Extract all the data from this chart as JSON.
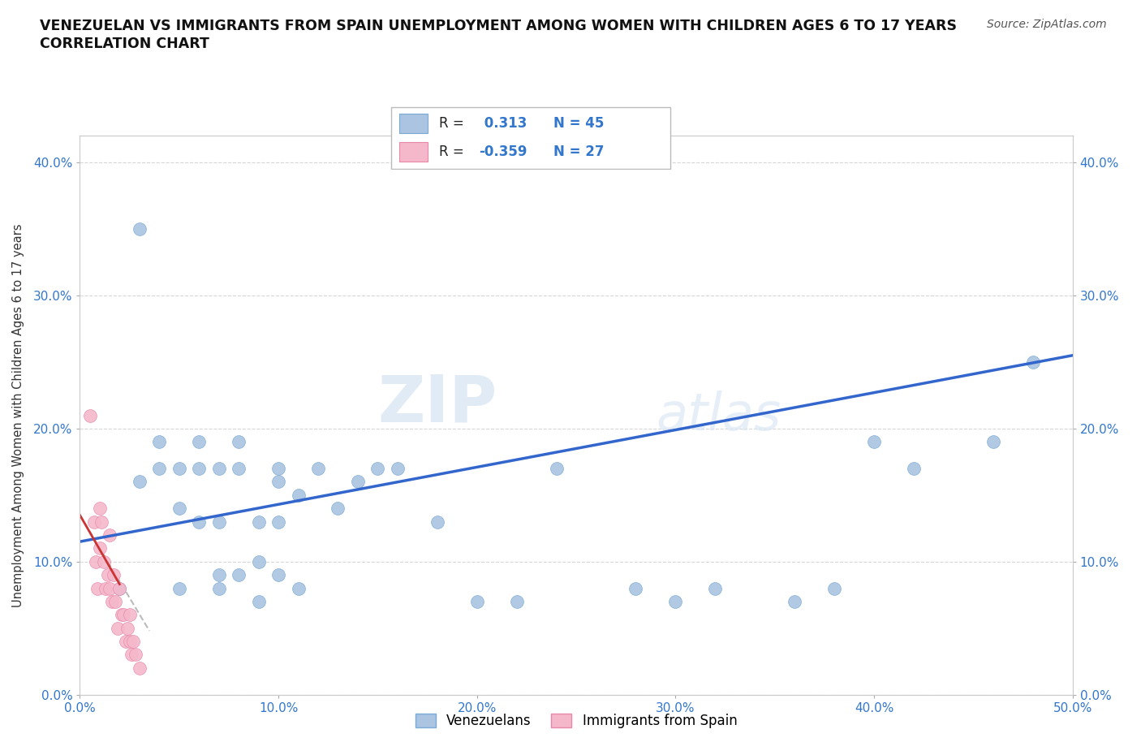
{
  "title_line1": "VENEZUELAN VS IMMIGRANTS FROM SPAIN UNEMPLOYMENT AMONG WOMEN WITH CHILDREN AGES 6 TO 17 YEARS",
  "title_line2": "CORRELATION CHART",
  "source": "Source: ZipAtlas.com",
  "ylabel": "Unemployment Among Women with Children Ages 6 to 17 years",
  "xlim": [
    0.0,
    0.5
  ],
  "ylim": [
    0.0,
    0.42
  ],
  "xticks": [
    0.0,
    0.1,
    0.2,
    0.3,
    0.4,
    0.5
  ],
  "yticks": [
    0.0,
    0.1,
    0.2,
    0.3,
    0.4
  ],
  "xtick_labels": [
    "0.0%",
    "10.0%",
    "20.0%",
    "30.0%",
    "40.0%",
    "50.0%"
  ],
  "ytick_labels": [
    "0.0%",
    "10.0%",
    "20.0%",
    "30.0%",
    "40.0%"
  ],
  "r_venezuelan": 0.313,
  "n_venezuelan": 45,
  "r_spain": -0.359,
  "n_spain": 27,
  "watermark_zip": "ZIP",
  "watermark_atlas": "atlas",
  "venezuelan_color": "#aac4e2",
  "venezuelan_edge": "#7aaad4",
  "spain_color": "#f5b8cb",
  "spain_edge": "#e888a8",
  "line_blue_color": "#3366cc",
  "line_red_color": "#cc3333",
  "line_dash_color": "#bbbbbb",
  "venezuelan_x": [
    0.02,
    0.03,
    0.03,
    0.04,
    0.04,
    0.05,
    0.05,
    0.05,
    0.06,
    0.06,
    0.06,
    0.07,
    0.07,
    0.07,
    0.07,
    0.08,
    0.08,
    0.08,
    0.09,
    0.09,
    0.09,
    0.1,
    0.1,
    0.1,
    0.1,
    0.11,
    0.11,
    0.12,
    0.13,
    0.14,
    0.15,
    0.16,
    0.18,
    0.2,
    0.22,
    0.24,
    0.28,
    0.3,
    0.32,
    0.36,
    0.38,
    0.4,
    0.42,
    0.46,
    0.48
  ],
  "venezuelan_y": [
    0.08,
    0.35,
    0.16,
    0.19,
    0.17,
    0.14,
    0.17,
    0.08,
    0.19,
    0.17,
    0.13,
    0.13,
    0.17,
    0.08,
    0.09,
    0.17,
    0.09,
    0.19,
    0.13,
    0.07,
    0.1,
    0.16,
    0.13,
    0.17,
    0.09,
    0.08,
    0.15,
    0.17,
    0.14,
    0.16,
    0.17,
    0.17,
    0.13,
    0.07,
    0.07,
    0.17,
    0.08,
    0.07,
    0.08,
    0.07,
    0.08,
    0.19,
    0.17,
    0.19,
    0.25
  ],
  "spain_x": [
    0.005,
    0.007,
    0.008,
    0.009,
    0.01,
    0.01,
    0.011,
    0.012,
    0.013,
    0.014,
    0.015,
    0.015,
    0.016,
    0.017,
    0.018,
    0.019,
    0.02,
    0.021,
    0.022,
    0.023,
    0.024,
    0.025,
    0.025,
    0.026,
    0.027,
    0.028,
    0.03
  ],
  "spain_y": [
    0.21,
    0.13,
    0.1,
    0.08,
    0.14,
    0.11,
    0.13,
    0.1,
    0.08,
    0.09,
    0.12,
    0.08,
    0.07,
    0.09,
    0.07,
    0.05,
    0.08,
    0.06,
    0.06,
    0.04,
    0.05,
    0.04,
    0.06,
    0.03,
    0.04,
    0.03,
    0.02
  ],
  "blue_line_x0": 0.0,
  "blue_line_x1": 0.5,
  "blue_line_y0": 0.115,
  "blue_line_y1": 0.255,
  "red_line_x0": 0.0,
  "red_line_x1": 0.02,
  "red_line_y0": 0.135,
  "red_line_y1": 0.083,
  "dash_line_x0": 0.0,
  "dash_line_x1": 0.035,
  "dash_line_y0": 0.135,
  "dash_line_y1": 0.048
}
